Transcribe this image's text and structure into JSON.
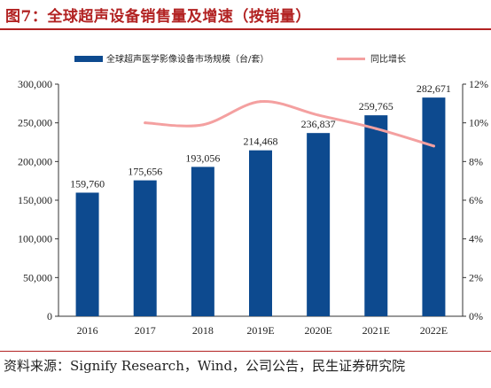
{
  "header": {
    "title": "图7：全球超声设备销售量及增速（按销量）"
  },
  "source": "资料来源：Signify Research，Wind，公司公告，民生证券研究院",
  "chart_data": {
    "type": "bar",
    "title": "",
    "categories": [
      "2016",
      "2017",
      "2018",
      "2019E",
      "2020E",
      "2021E",
      "2022E"
    ],
    "series": [
      {
        "name": "全球超声医学影像设备市场规模（台/套）",
        "type": "bar",
        "axis": "left",
        "color": "#0d4a8f",
        "values": [
          159760,
          175656,
          193056,
          214468,
          236837,
          259765,
          282671
        ],
        "labels": [
          "159,760",
          "175,656",
          "193,056",
          "214,468",
          "236,837",
          "259,765",
          "282,671"
        ]
      },
      {
        "name": "同比增长",
        "type": "line",
        "axis": "right",
        "color": "#f4a0a0",
        "values": [
          null,
          10.0,
          9.9,
          11.1,
          10.4,
          9.7,
          8.8
        ]
      }
    ],
    "left_axis": {
      "min": 0,
      "max": 300000,
      "ticks": [
        "0",
        "50,000",
        "100,000",
        "150,000",
        "200,000",
        "250,000",
        "300,000"
      ]
    },
    "right_axis": {
      "min": 0,
      "max": 12,
      "ticks": [
        "0%",
        "2%",
        "4%",
        "6%",
        "8%",
        "10%",
        "12%"
      ]
    },
    "legend_position": "top",
    "grid": false
  }
}
